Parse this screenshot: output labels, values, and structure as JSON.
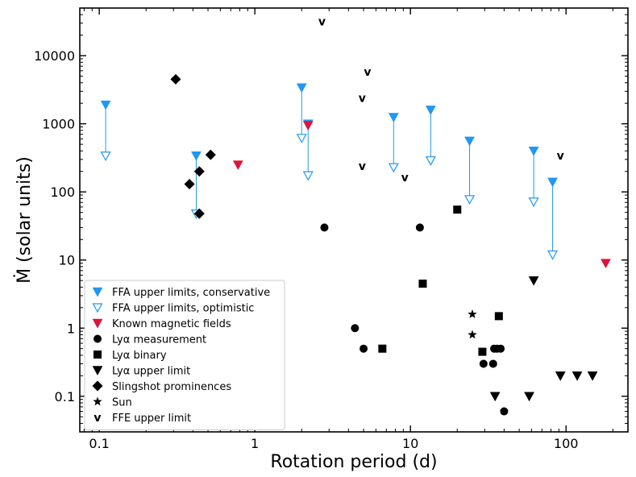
{
  "chart_data": {
    "type": "scatter",
    "xlabel": "Rotation period (d)",
    "ylabel": "Ṁ (solar units)",
    "xscale": "log",
    "yscale": "log",
    "xlim": [
      0.075,
      250
    ],
    "ylim": [
      0.03,
      50000
    ],
    "xticks": [
      {
        "value": 0.1,
        "label": "0.1"
      },
      {
        "value": 1,
        "label": "1"
      },
      {
        "value": 10,
        "label": "10"
      },
      {
        "value": 100,
        "label": "100"
      }
    ],
    "yticks": [
      {
        "value": 0.1,
        "label": "0.1"
      },
      {
        "value": 1,
        "label": "1"
      },
      {
        "value": 10,
        "label": "10"
      },
      {
        "value": 100,
        "label": "100"
      },
      {
        "value": 1000,
        "label": "1000"
      },
      {
        "value": 10000,
        "label": "10000"
      }
    ],
    "legend_position": "lower-left",
    "series": [
      {
        "name": "FFA upper limits, conservative",
        "marker": "triangle-down-filled",
        "color": "#2196f3",
        "points": [
          [
            0.11,
            1900
          ],
          [
            0.42,
            340
          ],
          [
            2.0,
            3400
          ],
          [
            2.2,
            1000
          ],
          [
            7.8,
            1250
          ],
          [
            13.5,
            1600
          ],
          [
            24,
            560
          ],
          [
            62,
            400
          ],
          [
            82,
            140
          ]
        ]
      },
      {
        "name": "FFA upper limits, optimistic",
        "marker": "triangle-down-open",
        "color": "#2196f3",
        "points": [
          [
            0.11,
            340
          ],
          [
            0.42,
            48
          ],
          [
            2.0,
            620
          ],
          [
            2.2,
            175
          ],
          [
            7.8,
            230
          ],
          [
            13.5,
            290
          ],
          [
            24,
            78
          ],
          [
            62,
            72
          ],
          [
            82,
            12
          ]
        ]
      },
      {
        "name": "Known magnetic fields",
        "marker": "triangle-down-filled",
        "color": "#dc143c",
        "points": [
          [
            0.78,
            250
          ],
          [
            2.2,
            950
          ],
          [
            180,
            9
          ]
        ]
      },
      {
        "name": "Lyα measurement",
        "marker": "circle",
        "color": "#000000",
        "points": [
          [
            2.8,
            30
          ],
          [
            11.5,
            30
          ],
          [
            4.4,
            1.0
          ],
          [
            5.0,
            0.5
          ],
          [
            29.5,
            0.3
          ],
          [
            34,
            0.3
          ],
          [
            34.5,
            0.5
          ],
          [
            36,
            0.5
          ],
          [
            38,
            0.5
          ],
          [
            40,
            0.06
          ]
        ]
      },
      {
        "name": "Lyα binary",
        "marker": "square",
        "color": "#000000",
        "points": [
          [
            20,
            55
          ],
          [
            12,
            4.5
          ],
          [
            6.6,
            0.5
          ],
          [
            29,
            0.45
          ],
          [
            37,
            1.5
          ]
        ]
      },
      {
        "name": "Lyα upper limit",
        "marker": "triangle-down-filled",
        "color": "#000000",
        "points": [
          [
            62,
            5
          ],
          [
            35,
            0.1
          ],
          [
            58,
            0.1
          ],
          [
            92,
            0.2
          ],
          [
            118,
            0.2
          ],
          [
            148,
            0.2
          ]
        ]
      },
      {
        "name": "Slingshot prominences",
        "marker": "diamond",
        "color": "#000000",
        "points": [
          [
            0.31,
            4500
          ],
          [
            0.38,
            130
          ],
          [
            0.44,
            200
          ],
          [
            0.52,
            350
          ],
          [
            0.44,
            48
          ]
        ]
      },
      {
        "name": "Sun",
        "marker": "star",
        "color": "#000000",
        "points": [
          [
            25,
            1.6
          ],
          [
            25,
            0.8
          ]
        ]
      },
      {
        "name": "FFE upper limit",
        "marker": "v",
        "color": "#000000",
        "points": [
          [
            2.7,
            32000
          ],
          [
            5.3,
            5800
          ],
          [
            4.9,
            2400
          ],
          [
            4.9,
            240
          ],
          [
            9.2,
            165
          ],
          [
            92,
            340
          ]
        ]
      }
    ],
    "arrows": [
      {
        "x": 0.11,
        "from": 1900,
        "to": 340
      },
      {
        "x": 0.42,
        "from": 340,
        "to": 48
      },
      {
        "x": 2.0,
        "from": 3400,
        "to": 620
      },
      {
        "x": 2.2,
        "from": 1000,
        "to": 175
      },
      {
        "x": 7.8,
        "from": 1250,
        "to": 230
      },
      {
        "x": 13.5,
        "from": 1600,
        "to": 290
      },
      {
        "x": 24,
        "from": 560,
        "to": 78
      },
      {
        "x": 62,
        "from": 400,
        "to": 72
      },
      {
        "x": 82,
        "from": 140,
        "to": 12
      }
    ],
    "legend": [
      {
        "label": "FFA upper limits, conservative",
        "marker": "triangle-down-filled",
        "color": "#2196f3"
      },
      {
        "label": "FFA upper limits, optimistic",
        "marker": "triangle-down-open",
        "color": "#2196f3"
      },
      {
        "label": "Known magnetic fields",
        "marker": "triangle-down-filled",
        "color": "#dc143c"
      },
      {
        "label": "Lyα measurement",
        "marker": "circle",
        "color": "#000000"
      },
      {
        "label": "Lyα binary",
        "marker": "square",
        "color": "#000000"
      },
      {
        "label": "Lyα upper limit",
        "marker": "triangle-down-filled",
        "color": "#000000"
      },
      {
        "label": "Slingshot prominences",
        "marker": "diamond",
        "color": "#000000"
      },
      {
        "label": "Sun",
        "marker": "star",
        "color": "#000000"
      },
      {
        "label": "FFE upper limit",
        "marker": "v",
        "color": "#000000"
      }
    ]
  }
}
